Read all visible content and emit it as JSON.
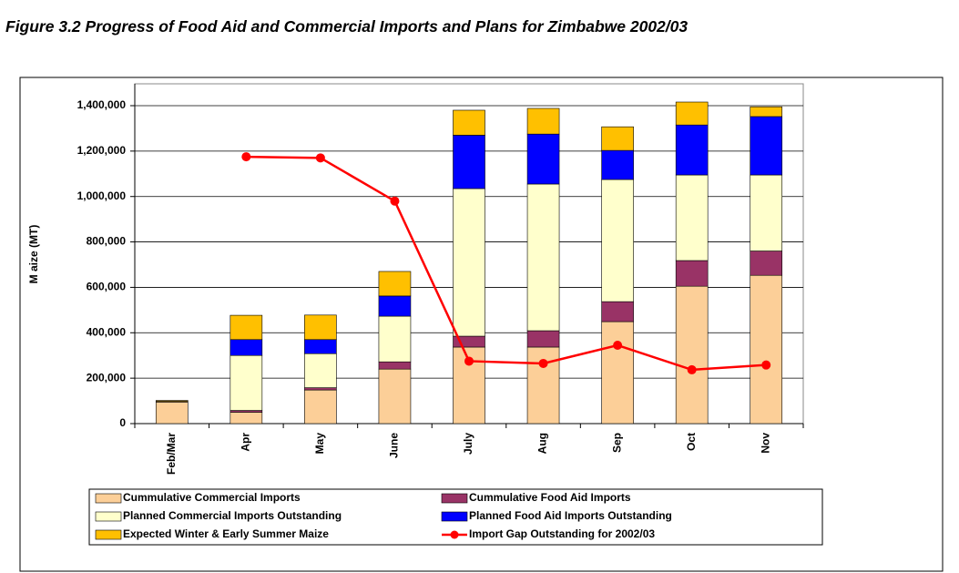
{
  "chart_data": {
    "type": "bar",
    "title": "Figure 3.2 Progress of Food Aid and Commercial Imports and Plans for Zimbabwe 2002/03",
    "y_label": "M aize (MT)",
    "stacked": true,
    "categories": [
      "Feb/Mar",
      "Apr",
      "May",
      "June",
      "July",
      "Aug",
      "Sep",
      "Oct",
      "Nov"
    ],
    "series": [
      {
        "name": "Cummulative  Commercial Imports",
        "color": "#fccf98",
        "values": [
          95000,
          50000,
          148000,
          240000,
          337000,
          337000,
          449000,
          605000,
          653000
        ]
      },
      {
        "name": "Cummulative  Food Aid Imports",
        "color": "#993366",
        "values": [
          3000,
          8000,
          10000,
          32000,
          48000,
          72000,
          88000,
          113000,
          107000
        ]
      },
      {
        "name": "Planned  Commercial Imports Outstanding",
        "color": "#ffffcc",
        "values": [
          0,
          242000,
          150000,
          201000,
          650000,
          646000,
          538000,
          377000,
          335000
        ]
      },
      {
        "name": "Planned  Food Aid Imports Outstanding",
        "color": "#0000ff",
        "values": [
          0,
          70000,
          62000,
          89000,
          235000,
          220000,
          128000,
          220000,
          257000
        ]
      },
      {
        "name": "Expected Winter & Early Summer Maize",
        "color": "#ffc000",
        "values": [
          4000,
          107000,
          108000,
          108000,
          110000,
          113000,
          104000,
          101000,
          43000
        ]
      },
      {
        "name": "Import Gap Outstanding for 2002/03",
        "color": "#ff0000",
        "type": "line",
        "values": [
          null,
          1175000,
          1170000,
          980000,
          275000,
          265000,
          345000,
          237000,
          258000
        ]
      }
    ],
    "ylim": [
      0,
      1500000
    ],
    "yticks": [
      0,
      {
        "value": 200000,
        "label": "200,000"
      },
      {
        "value": 400000,
        "label": "400,000"
      },
      {
        "value": 600000,
        "label": "600,000"
      },
      {
        "value": 800000,
        "label": "800,000"
      },
      {
        "value": 1000000,
        "label": "1,000,000"
      },
      {
        "value": 1200000,
        "label": "1,200,000"
      },
      {
        "value": 1400000,
        "label": "1,400,000"
      }
    ],
    "grid": true
  }
}
